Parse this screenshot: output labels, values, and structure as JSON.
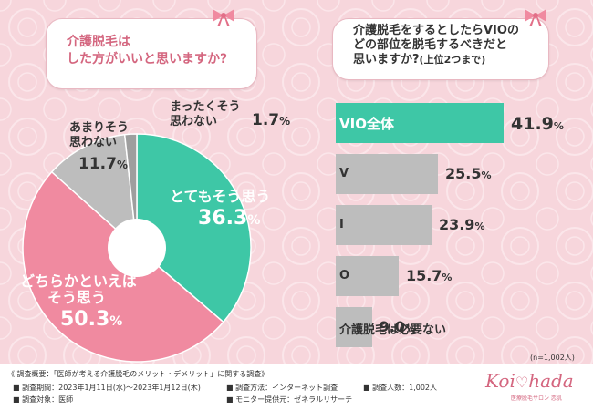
{
  "colors": {
    "background": "#f7d6dc",
    "pink": "#f08aa0",
    "teal": "#3ec7a6",
    "gray": "#bdbdbd",
    "darkgray": "#9e9e9e",
    "title_pink": "#d4667f"
  },
  "left_panel": {
    "title_line1": "介護脱毛は",
    "title_line2": "した方がいいと思いますか?"
  },
  "right_panel": {
    "title_line1": "介護脱毛をするとしたらVIOの",
    "title_line2": "どの部位を脱毛するべきだと",
    "title_line3": "思いますか?",
    "title_note": "(上位2つまで)",
    "sample_size": "(n=1,002人)"
  },
  "chart_data": [
    {
      "type": "pie",
      "variant": "donut",
      "title": "介護脱毛はした方がいいと思いますか?",
      "unit": "%",
      "slices": [
        {
          "label_line1": "とてもそう思う",
          "label_line2": "",
          "value": 36.3,
          "value_text": "36.3",
          "color": "#3ec7a6"
        },
        {
          "label_line1": "どちらかといえば",
          "label_line2": "そう思う",
          "value": 50.3,
          "value_text": "50.3",
          "color": "#f08aa0"
        },
        {
          "label_line1": "あまりそう",
          "label_line2": "思わない",
          "value": 11.7,
          "value_text": "11.7",
          "color": "#bdbdbd"
        },
        {
          "label_line1": "まったくそう",
          "label_line2": "思わない",
          "value": 1.7,
          "value_text": "1.7",
          "color": "#9e9e9e"
        }
      ]
    },
    {
      "type": "bar",
      "orientation": "horizontal",
      "title": "介護脱毛をするとしたらVIOのどの部位を脱毛するべきだと思いますか?(上位2つまで)",
      "unit": "%",
      "xlim": [
        0,
        41.9
      ],
      "categories": [
        "VIO全体",
        "V",
        "I",
        "O",
        "介護脱毛は必要ない"
      ],
      "values": [
        41.9,
        25.5,
        23.9,
        15.7,
        9.0
      ],
      "value_texts": [
        "41.9",
        "25.5",
        "23.9",
        "15.7",
        "9.0"
      ],
      "colors": [
        "#3ec7a6",
        "#bdbdbd",
        "#bdbdbd",
        "#bdbdbd",
        "#bdbdbd"
      ]
    }
  ],
  "footer": {
    "survey_title": "《 調査概要：「医師が考える介護脱毛のメリット・デメリット」に関する調査》",
    "period": "調査期間：2023年1月11日(水)～2023年1月12日(木)",
    "method": "調査方法：インターネット調査",
    "count": "調査人数：1,002人",
    "target": "調査対象：医師",
    "provider": "モニター提供元：ゼネラルリサーチ",
    "logo_part1": "Koi",
    "logo_part2": "hada",
    "logo_sub": "医療脱毛サロン 恋肌"
  }
}
